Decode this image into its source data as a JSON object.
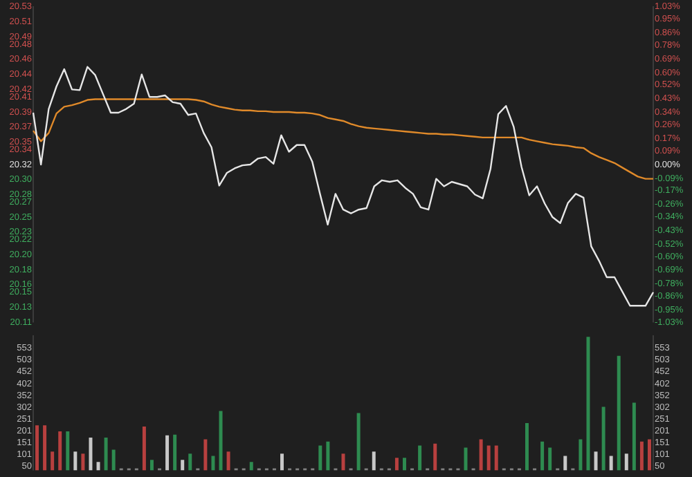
{
  "chart_data": [
    {
      "type": "line",
      "categories": [
        null,
        null,
        null,
        null,
        null,
        null,
        null,
        null,
        null,
        null,
        null,
        null,
        null,
        null,
        null,
        null,
        null,
        null,
        null,
        null,
        null,
        null,
        null,
        null,
        null,
        null,
        null,
        null,
        null,
        null,
        null,
        null,
        null,
        null,
        null,
        null,
        null,
        null,
        null,
        null,
        null,
        null,
        null,
        null,
        null,
        null,
        null,
        null,
        null,
        null,
        null,
        null,
        null,
        null,
        null,
        null,
        null,
        null,
        null,
        null,
        null,
        null,
        null,
        null,
        null,
        null,
        null,
        null,
        null,
        null,
        null,
        null,
        null,
        null,
        null,
        null,
        null,
        null,
        null,
        null,
        null
      ],
      "ylim": [
        20.11,
        20.53
      ],
      "yticks": [
        20.53,
        20.51,
        20.49,
        20.48,
        20.46,
        20.44,
        20.42,
        20.41,
        20.39,
        20.37,
        20.35,
        20.34,
        20.32,
        {
          "value": 20.3,
          "label": "20.30"
        },
        20.28,
        20.27,
        20.25,
        20.23,
        20.22,
        {
          "value": 20.2,
          "label": "20.20"
        },
        20.18,
        20.16,
        20.15,
        20.13,
        20.11
      ],
      "y2lim": [
        -1.03,
        1.03
      ],
      "y2ticks": [
        {
          "value": 1.03,
          "label": "1.03%"
        },
        {
          "value": 0.95,
          "label": "0.95%"
        },
        {
          "value": 0.86,
          "label": "0.86%"
        },
        {
          "value": 0.78,
          "label": "0.78%"
        },
        {
          "value": 0.69,
          "label": "0.69%"
        },
        {
          "value": 0.6,
          "label": "0.60%"
        },
        {
          "value": 0.52,
          "label": "0.52%"
        },
        {
          "value": 0.43,
          "label": "0.43%"
        },
        {
          "value": 0.34,
          "label": "0.34%"
        },
        {
          "value": 0.26,
          "label": "0.26%"
        },
        {
          "value": 0.17,
          "label": "0.17%"
        },
        {
          "value": 0.09,
          "label": "0.09%"
        },
        {
          "value": 0,
          "label": "0.00%"
        },
        {
          "value": -0.09,
          "label": "-0.09%"
        },
        {
          "value": -0.17,
          "label": "-0.17%"
        },
        {
          "value": -0.26,
          "label": "-0.26%"
        },
        {
          "value": -0.34,
          "label": "-0.34%"
        },
        {
          "value": -0.43,
          "label": "-0.43%"
        },
        {
          "value": -0.52,
          "label": "-0.52%"
        },
        {
          "value": -0.6,
          "label": "-0.60%"
        },
        {
          "value": -0.69,
          "label": "-0.69%"
        },
        {
          "value": -0.78,
          "label": "-0.78%"
        },
        {
          "value": -0.86,
          "label": "-0.86%"
        },
        {
          "value": -0.95,
          "label": "-0.95%"
        },
        {
          "value": -1.03,
          "label": "-1.03%"
        }
      ],
      "tick_labels": "y",
      "marker": "none",
      "series": [
        {
          "color": "#e6e6e6",
          "values": [
            20.389,
            20.32,
            20.394,
            20.424,
            20.447,
            20.42,
            20.419,
            20.45,
            20.439,
            20.414,
            20.389,
            20.389,
            20.394,
            20.401,
            20.44,
            20.41,
            20.41,
            20.412,
            20.403,
            20.401,
            20.386,
            20.388,
            20.362,
            20.343,
            20.292,
            20.309,
            20.315,
            20.319,
            20.32,
            20.328,
            20.33,
            20.321,
            20.359,
            20.337,
            20.346,
            20.346,
            20.324,
            20.281,
            20.24,
            20.281,
            20.26,
            20.255,
            20.26,
            20.262,
            20.291,
            20.299,
            20.297,
            20.299,
            20.289,
            20.281,
            20.263,
            20.26,
            20.301,
            20.291,
            20.297,
            20.294,
            20.291,
            20.28,
            20.275,
            20.314,
            20.387,
            20.398,
            20.37,
            20.317,
            20.279,
            20.291,
            20.268,
            20.25,
            20.242,
            20.269,
            20.281,
            20.276,
            20.211,
            20.192,
            20.17,
            20.17,
            20.151,
            20.132,
            20.132,
            20.132,
            20.15
          ]
        },
        {
          "color": "#e08a2a",
          "values": [
            20.365,
            20.351,
            20.362,
            20.388,
            20.397,
            20.399,
            20.402,
            20.406,
            20.407,
            20.407,
            20.407,
            20.407,
            20.407,
            20.407,
            20.407,
            20.407,
            20.407,
            20.407,
            20.407,
            20.407,
            20.407,
            20.406,
            20.404,
            20.4,
            20.397,
            20.395,
            20.393,
            20.392,
            20.392,
            20.391,
            20.391,
            20.39,
            20.39,
            20.39,
            20.389,
            20.389,
            20.388,
            20.386,
            20.382,
            20.38,
            20.378,
            20.374,
            20.371,
            20.369,
            20.368,
            20.367,
            20.366,
            20.365,
            20.364,
            20.363,
            20.362,
            20.361,
            20.361,
            20.36,
            20.36,
            20.359,
            20.358,
            20.357,
            20.356,
            20.356,
            20.356,
            20.356,
            20.356,
            20.356,
            20.353,
            20.351,
            20.349,
            20.347,
            20.346,
            20.345,
            20.343,
            20.342,
            20.335,
            20.33,
            20.326,
            20.322,
            20.316,
            20.31,
            20.304,
            20.301,
            20.301
          ]
        }
      ]
    },
    {
      "type": "bar",
      "categories": [
        null,
        null,
        null,
        null,
        null,
        null,
        null,
        null,
        null,
        null,
        null,
        null,
        null,
        null,
        null,
        null,
        null,
        null,
        null,
        null,
        null,
        null,
        null,
        null,
        null,
        null,
        null,
        null,
        null,
        null,
        null,
        null,
        null,
        null,
        null,
        null,
        null,
        null,
        null,
        null,
        null,
        null,
        null,
        null,
        null,
        null,
        null,
        null,
        null,
        null,
        null,
        null,
        null,
        null,
        null,
        null,
        null,
        null,
        null,
        null,
        null,
        null,
        null,
        null,
        null,
        null,
        null,
        null,
        null,
        null,
        null,
        null,
        null,
        null,
        null,
        null,
        null,
        null,
        null,
        null,
        null
      ],
      "ylim": [
        34,
        605
      ],
      "yticks": [
        50,
        101,
        151,
        201,
        251,
        302,
        352,
        402,
        452,
        503,
        553
      ],
      "y2lim": [
        34,
        605
      ],
      "y2ticks": [
        50,
        101,
        151,
        201,
        251,
        302,
        352,
        402,
        452,
        503,
        553
      ],
      "tick_labels": "y",
      "values": [
        225,
        225,
        113,
        199,
        199,
        113,
        104,
        173,
        69,
        173,
        121,
        42,
        42,
        42,
        220,
        78,
        42,
        182,
        185,
        78,
        104,
        42,
        165,
        95,
        286,
        113,
        42,
        42,
        69,
        42,
        42,
        42,
        104,
        42,
        42,
        42,
        42,
        139,
        156,
        42,
        104,
        42,
        277,
        42,
        113,
        42,
        42,
        87,
        87,
        42,
        139,
        42,
        147,
        42,
        42,
        42,
        130,
        42,
        165,
        139,
        139,
        42,
        42,
        42,
        234,
        42,
        156,
        130,
        42,
        95,
        42,
        165,
        601,
        113,
        303,
        95,
        520,
        104,
        321,
        156,
        165
      ],
      "colors": [
        "#b8403f",
        "#b8403f",
        "#b8403f",
        "#b8403f",
        "#2e8b50",
        "#c8c8c8",
        "#b8403f",
        "#c8c8c8",
        "#c8c8c8",
        "#2e8b50",
        "#2e8b50",
        "#808080",
        "#808080",
        "#808080",
        "#b8403f",
        "#2e8b50",
        "#808080",
        "#c8c8c8",
        "#2e8b50",
        "#c8c8c8",
        "#2e8b50",
        "#808080",
        "#b8403f",
        "#2e8b50",
        "#2e8b50",
        "#b8403f",
        "#808080",
        "#808080",
        "#2e8b50",
        "#808080",
        "#808080",
        "#808080",
        "#c8c8c8",
        "#808080",
        "#808080",
        "#808080",
        "#808080",
        "#2e8b50",
        "#2e8b50",
        "#808080",
        "#b8403f",
        "#808080",
        "#2e8b50",
        "#808080",
        "#c8c8c8",
        "#808080",
        "#808080",
        "#b8403f",
        "#2e8b50",
        "#808080",
        "#2e8b50",
        "#808080",
        "#b8403f",
        "#808080",
        "#808080",
        "#808080",
        "#2e8b50",
        "#808080",
        "#b8403f",
        "#b8403f",
        "#b8403f",
        "#808080",
        "#808080",
        "#808080",
        "#2e8b50",
        "#808080",
        "#2e8b50",
        "#2e8b50",
        "#808080",
        "#c8c8c8",
        "#808080",
        "#2e8b50",
        "#2e8b50",
        "#c8c8c8",
        "#2e8b50",
        "#c8c8c8",
        "#2e8b50",
        "#c8c8c8",
        "#2e8b50",
        "#b8403f",
        "#b8403f"
      ]
    }
  ]
}
